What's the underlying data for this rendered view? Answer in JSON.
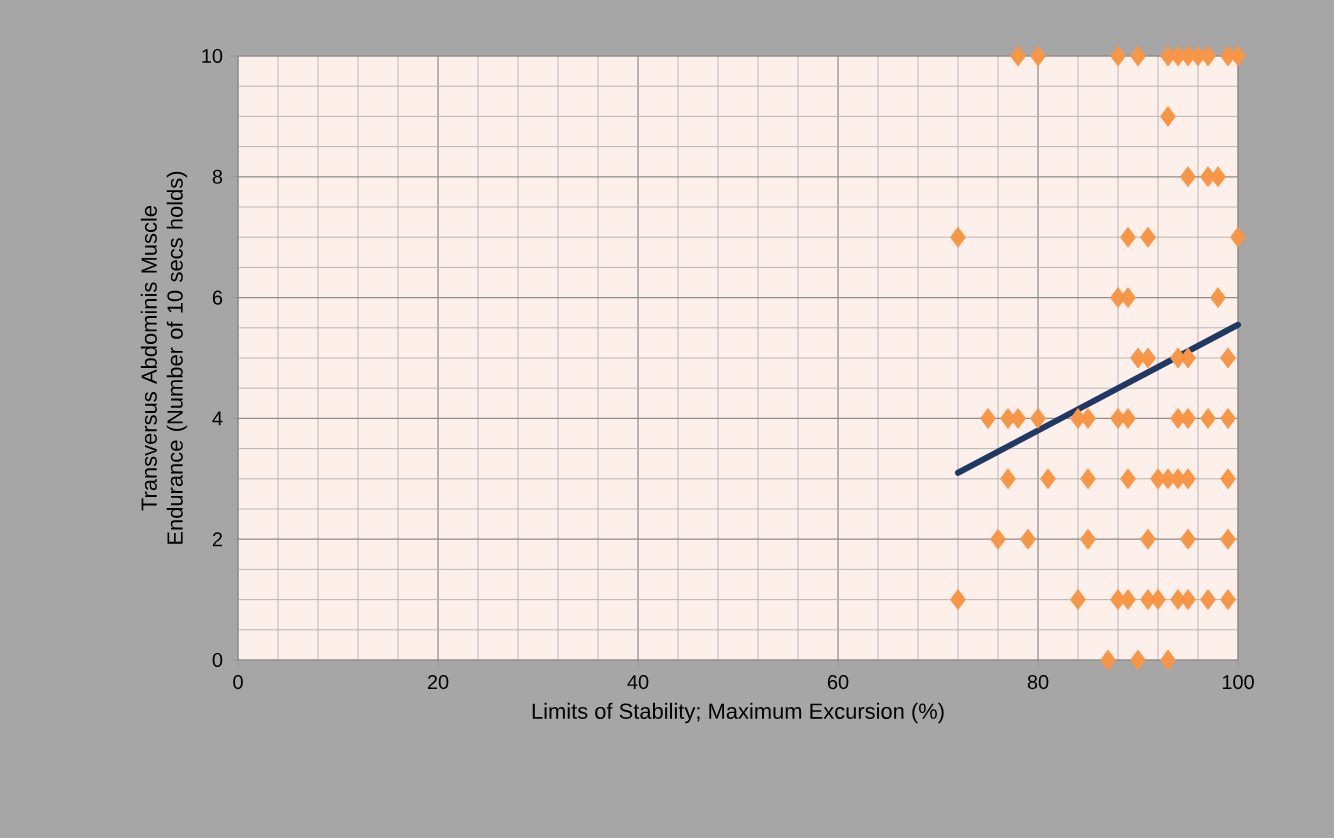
{
  "chart_data": {
    "type": "scatter",
    "xlabel": "Limits of Stability; Maximum Excursion (%)",
    "ylabel": "Transversus Abdominis Muscle Endurance (Number of 10 secs holds)",
    "xlim": [
      0,
      100
    ],
    "ylim": [
      0,
      10
    ],
    "xticks": [
      0,
      20,
      40,
      60,
      80,
      100
    ],
    "yticks": [
      0,
      2,
      4,
      6,
      8,
      10
    ],
    "grid": true,
    "marker": "diamond",
    "series": [
      {
        "color": "#f79646",
        "x": [
          78,
          80,
          88,
          90,
          93,
          94,
          95,
          96,
          97,
          99,
          100,
          93,
          95,
          97,
          98,
          72,
          89,
          91,
          100,
          88,
          89,
          98,
          90,
          91,
          94,
          95,
          99,
          75,
          77,
          78,
          80,
          84,
          85,
          88,
          89,
          94,
          95,
          97,
          99,
          77,
          81,
          85,
          89,
          92,
          93,
          94,
          95,
          99,
          76,
          79,
          85,
          91,
          95,
          99,
          72,
          84,
          88,
          89,
          91,
          92,
          94,
          95,
          97,
          99,
          87,
          90,
          93
        ],
        "values": [
          10,
          10,
          10,
          10,
          10,
          10,
          10,
          10,
          10,
          10,
          10,
          9,
          8,
          8,
          8,
          7,
          7,
          7,
          7,
          6,
          6,
          6,
          5,
          5,
          5,
          5,
          5,
          4,
          4,
          4,
          4,
          4,
          4,
          4,
          4,
          4,
          4,
          4,
          4,
          3,
          3,
          3,
          3,
          3,
          3,
          3,
          3,
          3,
          2,
          2,
          2,
          2,
          2,
          2,
          1,
          1,
          1,
          1,
          1,
          1,
          1,
          1,
          1,
          1,
          0,
          0,
          0
        ]
      },
      {
        "type": "line",
        "color": "#1f3864",
        "marker": "none",
        "x": [
          72,
          100
        ],
        "values": [
          3.1,
          5.55
        ]
      }
    ]
  }
}
